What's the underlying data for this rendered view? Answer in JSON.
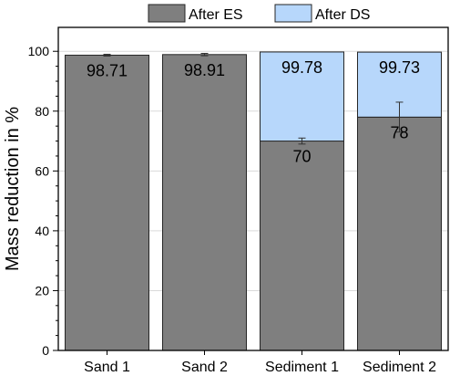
{
  "chart_data": {
    "type": "bar",
    "stacked": true,
    "categories": [
      "Sand 1",
      "Sand 2",
      "Sediment 1",
      "Sediment 2"
    ],
    "series": [
      {
        "name": "After ES",
        "color": "#7f7f7f",
        "values": [
          98.71,
          98.91,
          70,
          78
        ],
        "errors": [
          0.3,
          0.4,
          1.0,
          5.0
        ],
        "labels": [
          "98.71",
          "98.91",
          "70",
          "78"
        ]
      },
      {
        "name": "After DS",
        "color": "#b7d7fb",
        "values": [
          null,
          null,
          29.78,
          21.73
        ],
        "totals": [
          null,
          null,
          99.78,
          99.73
        ],
        "labels": [
          "",
          "",
          "99.78",
          "99.73"
        ]
      }
    ],
    "xlabel": "",
    "ylabel": "Mass reduction in %",
    "ylim": [
      0,
      108
    ],
    "yticks": [
      0,
      20,
      40,
      60,
      80,
      100
    ],
    "grid": true,
    "legend_position": "top"
  }
}
